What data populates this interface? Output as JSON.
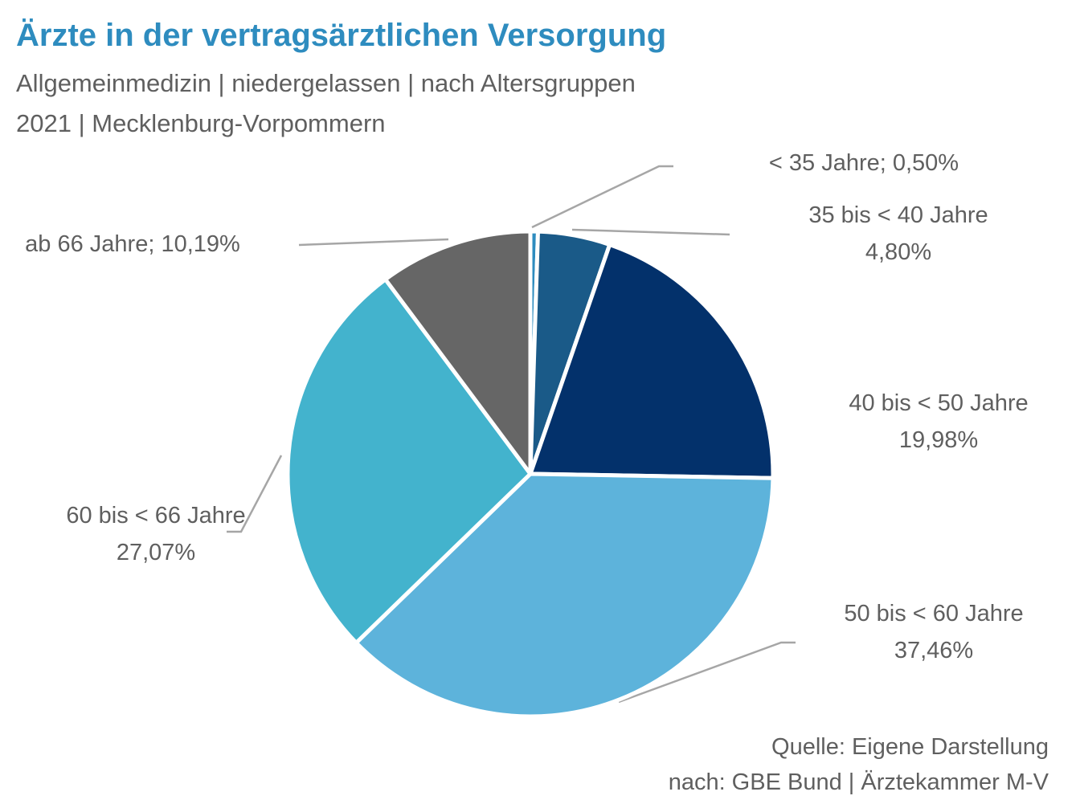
{
  "header": {
    "title": "Ärzte in der vertragsärztlichen Versorgung",
    "subtitle_line1": "Allgemeinmedizin | niedergelassen | nach Altersgruppen",
    "subtitle_line2": "2021 | Mecklenburg-Vorpommern"
  },
  "footer": {
    "source_line1": "Quelle: Eigene Darstellung",
    "source_line2": "nach: GBE Bund | Ärztekammer M-V"
  },
  "chart_data": {
    "type": "pie",
    "title": "Ärzte in der vertragsärztlichen Versorgung",
    "subtitle": "Allgemeinmedizin | niedergelassen | nach Altersgruppen 2021 | Mecklenburg-Vorpommern",
    "slices": [
      {
        "category": "< 35 Jahre",
        "value": 0.5,
        "label_lines": [
          "< 35 Jahre; 0,50%"
        ],
        "color": "#2e8cbf"
      },
      {
        "category": "35 bis < 40 Jahre",
        "value": 4.8,
        "label_lines": [
          "35 bis < 40 Jahre",
          "4,80%"
        ],
        "color": "#1a5a88"
      },
      {
        "category": "40 bis < 50 Jahre",
        "value": 19.98,
        "label_lines": [
          "40 bis < 50 Jahre",
          "19,98%"
        ],
        "color": "#03316b"
      },
      {
        "category": "50 bis < 60 Jahre",
        "value": 37.46,
        "label_lines": [
          "50 bis < 60 Jahre",
          "37,46%"
        ],
        "color": "#5db3db"
      },
      {
        "category": "60 bis < 66 Jahre",
        "value": 27.07,
        "label_lines": [
          "60 bis < 66 Jahre",
          "27,07%"
        ],
        "color": "#43b3cd"
      },
      {
        "category": "ab 66 Jahre",
        "value": 10.19,
        "label_lines": [
          "ab 66 Jahre; 10,19%"
        ],
        "color": "#666666"
      }
    ],
    "start_angle": "12 o'clock",
    "direction": "clockwise",
    "slice_border_color": "#ffffff",
    "leader_line_color": "#a6a6a6",
    "legend": "none"
  }
}
